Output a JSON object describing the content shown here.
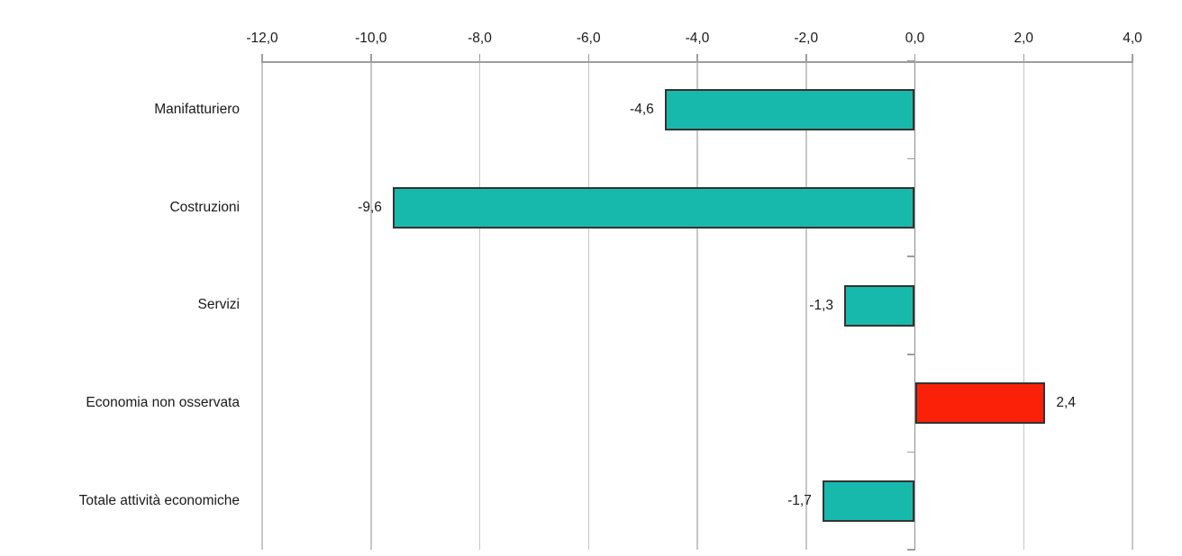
{
  "chart_data": {
    "type": "bar",
    "orientation": "horizontal",
    "title": "",
    "categories": [
      "Manifatturiero",
      "Costruzioni",
      "Servizi",
      "Economia non osservata",
      "Totale attività economiche"
    ],
    "values": [
      -4.6,
      -9.6,
      -1.3,
      2.4,
      -1.7
    ],
    "value_labels": [
      "-4,6",
      "-9,6",
      "-1,3",
      "2,4",
      "-1,7"
    ],
    "bar_colors": [
      "#17B9AC",
      "#17B9AC",
      "#17B9AC",
      "#FA2108",
      "#17B9AC"
    ],
    "xlim": [
      -12,
      4
    ],
    "x_ticks": [
      -12,
      -10,
      -8,
      -6,
      -4,
      -2,
      0,
      2,
      4
    ],
    "x_tick_labels": [
      "-12,0",
      "-10,0",
      "-8,0",
      "-6,0",
      "-4,0",
      "-2,0",
      "0,0",
      "2,0",
      "4,0"
    ],
    "axis_position": "top",
    "grid": true,
    "legend": false,
    "colors": {
      "bar_teal": "#17B9AC",
      "bar_red": "#FA2108",
      "bar_border": "#333333",
      "grid_line": "#c8c8c8",
      "axis_line": "#9e9e9e",
      "text": "#1a1a1a",
      "background": "#ffffff"
    }
  }
}
